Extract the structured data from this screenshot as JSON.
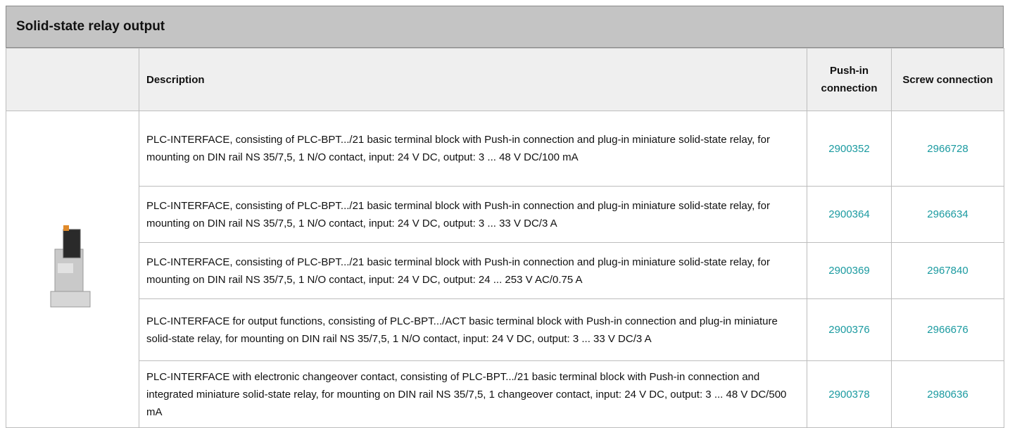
{
  "header": {
    "title": "Solid-state relay output"
  },
  "table": {
    "columns": [
      "Description",
      "Push-in connection",
      "Screw connection"
    ],
    "rows": [
      [
        "PLC-INTERFACE, consisting of PLC-BPT.../21 basic terminal block with Push-in connection and plug-in miniature solid-state relay, for mounting on DIN rail NS 35/7,5, 1 N/O contact, input: 24 V DC, output: 3 ... 48 V DC/100 mA",
        "2900352",
        "2966728"
      ],
      [
        "PLC-INTERFACE, consisting of PLC-BPT.../21 basic terminal block with Push-in connection and plug-in miniature solid-state relay, for mounting on DIN rail NS 35/7,5, 1 N/O contact, input: 24 V DC, output: 3 ... 33 V DC/3 A",
        "2900364",
        "2966634"
      ],
      [
        "PLC-INTERFACE, consisting of PLC-BPT.../21 basic terminal block with Push-in connection and plug-in miniature solid-state relay, for mounting on DIN rail NS 35/7,5, 1 N/O contact, input: 24 V DC, output: 24 ... 253 V AC/0.75 A",
        "2900369",
        "2967840"
      ],
      [
        "PLC-INTERFACE for output functions, consisting of PLC-BPT.../ACT basic terminal block with Push-in connection and plug-in miniature solid-state relay, for mounting on DIN rail NS 35/7,5, 1 N/O contact, input: 24 V DC, output: 3 ... 33 V DC/3 A",
        "2900376",
        "2966676"
      ],
      [
        "PLC-INTERFACE with electronic changeover contact, consisting of PLC-BPT.../21 basic terminal block with Push-in connection and integrated miniature solid-state relay, for mounting on DIN rail NS 35/7,5, 1 changeover contact, input: 24 V DC, output: 3 ... 48 V DC/500 mA",
        "2900378",
        "2980636"
      ]
    ]
  }
}
